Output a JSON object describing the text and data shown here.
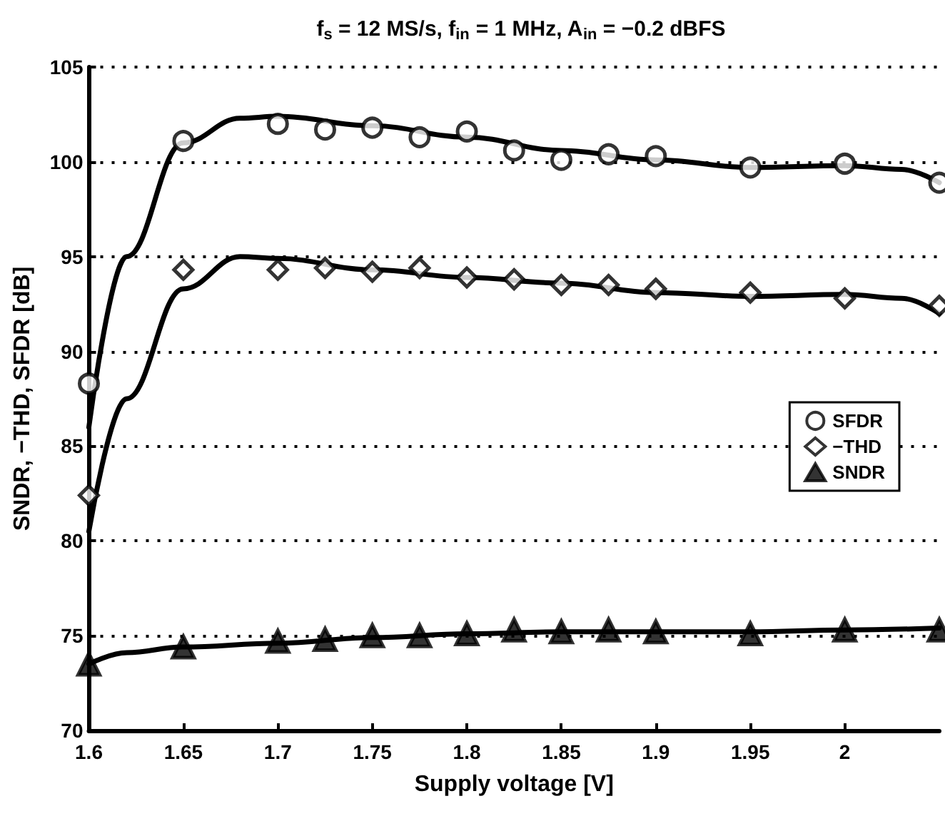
{
  "chart_data": {
    "type": "scatter",
    "title": "f$_{s}$ = 12 MS/s, f$_{in}$ = 1 MHz, A$_{in}$ = −0.2 dBFS",
    "xlabel": "Supply voltage [V]",
    "ylabel": "SNDR, −THD, SFDR [dB]",
    "x": [
      1.6,
      1.65,
      1.7,
      1.725,
      1.75,
      1.775,
      1.8,
      1.825,
      1.85,
      1.875,
      1.9,
      1.95,
      2.0,
      2.05
    ],
    "series": [
      {
        "name": "SFDR",
        "color": "#000000",
        "marker": "circle",
        "values": [
          88.3,
          101.1,
          102.0,
          101.7,
          101.8,
          101.3,
          101.6,
          100.6,
          100.1,
          100.4,
          100.3,
          99.7,
          99.9,
          98.9
        ]
      },
      {
        "name": "−THD",
        "color": "#000000",
        "marker": "diamond",
        "values": [
          82.4,
          94.3,
          94.3,
          94.4,
          94.2,
          94.4,
          93.9,
          93.8,
          93.5,
          93.5,
          93.3,
          93.1,
          92.8,
          92.4
        ]
      },
      {
        "name": "SNDR",
        "color": "#000000",
        "marker": "triangle",
        "values": [
          73.5,
          74.4,
          74.7,
          74.8,
          75.0,
          75.0,
          75.1,
          75.3,
          75.2,
          75.3,
          75.2,
          75.1,
          75.3,
          75.3
        ]
      },
      {
        "type": "line",
        "color": "#000000",
        "marker": "none",
        "line_style": "solid",
        "x": [
          1.6,
          1.62,
          1.65,
          1.68,
          1.7,
          1.75,
          1.8,
          1.85,
          1.9,
          1.95,
          2.0,
          2.03,
          2.05
        ],
        "values": [
          86.0,
          95.0,
          101.0,
          102.3,
          102.4,
          101.9,
          101.3,
          100.6,
          100.1,
          99.7,
          99.8,
          99.6,
          98.9
        ]
      },
      {
        "type": "line",
        "color": "#000000",
        "marker": "none",
        "line_style": "solid",
        "x": [
          1.6,
          1.62,
          1.65,
          1.68,
          1.7,
          1.75,
          1.8,
          1.85,
          1.9,
          1.95,
          2.0,
          2.03,
          2.05
        ],
        "values": [
          80.5,
          87.5,
          93.3,
          95.0,
          94.9,
          94.3,
          93.9,
          93.6,
          93.1,
          92.9,
          93.0,
          92.8,
          92.0
        ]
      },
      {
        "type": "line",
        "color": "#000000",
        "marker": "none",
        "line_style": "solid",
        "x": [
          1.6,
          1.62,
          1.65,
          1.7,
          1.75,
          1.8,
          1.85,
          1.9,
          1.95,
          2.0,
          2.05
        ],
        "values": [
          73.5,
          74.1,
          74.4,
          74.6,
          74.9,
          75.1,
          75.2,
          75.2,
          75.2,
          75.3,
          75.4
        ]
      }
    ],
    "xlim": [
      1.6,
      2.05
    ],
    "xticks": [
      1.6,
      1.65,
      1.7,
      1.75,
      1.8,
      1.85,
      1.9,
      1.95,
      2
    ],
    "ylim": [
      70,
      105
    ],
    "yticks": [
      70,
      75,
      80,
      85,
      90,
      95,
      100,
      105
    ],
    "grid": "y",
    "legend": "right"
  }
}
